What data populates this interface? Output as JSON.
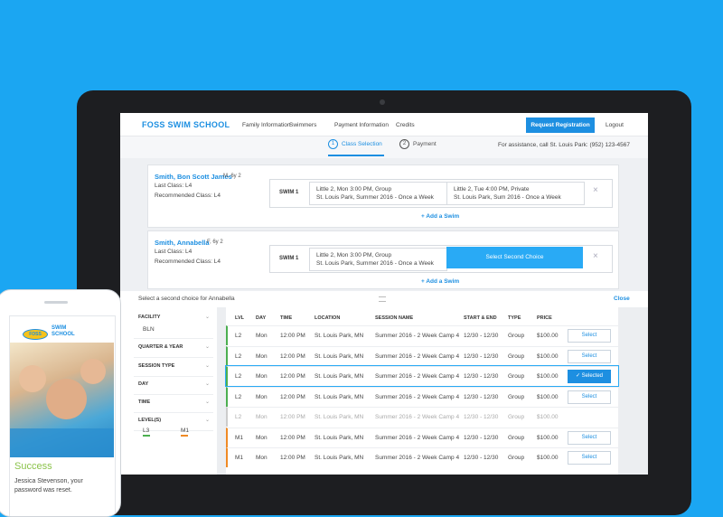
{
  "header": {
    "logo": "FOSS SWIM SCHOOL",
    "nav": [
      "Family Information",
      "Swimmers",
      "Payment Information",
      "Credits"
    ],
    "button": "Request Registration",
    "logout": "Logout"
  },
  "steps": [
    {
      "num": "1",
      "label": "Class Selection"
    },
    {
      "num": "2",
      "label": "Payment"
    }
  ],
  "assistance": "For assistance, call St. Louis Park: (952) 123-4567",
  "students": [
    {
      "name": "Smith, Bon Scott James",
      "meta": "M, 6y 2",
      "last": "Last Class: L4",
      "recommended": "Recommended Class: L4",
      "swim": "SWIM 1",
      "choices": [
        [
          "Little 2, Mon 3:00 PM, Group",
          "St. Louis Park, Summer 2016 - Once a Week"
        ],
        [
          "Little 2, Tue 4:00 PM, Private",
          "St. Louis Park, Sum 2016 - Once a Week"
        ]
      ],
      "add": "+ Add a Swim"
    },
    {
      "name": "Smith, Annabella",
      "meta": "F, 6y 2",
      "last": "Last Class: L4",
      "recommended": "Recommended Class: L4",
      "swim": "SWIM 1",
      "choices": [
        [
          "Little 2, Mon 3:00 PM, Group",
          "St. Louis Park, Summer 2016 - Once a Week"
        ]
      ],
      "second_choice": "Select Second Choice",
      "add": "+ Add a Swim"
    }
  ],
  "panel": {
    "prompt": "Select a second choice for Annabella",
    "close": "Close"
  },
  "filters": {
    "labels": [
      "FACILITY",
      "QUARTER & YEAR",
      "SESSION TYPE",
      "DAY",
      "TIME",
      "LEVEL(S)"
    ],
    "facility": "BLN",
    "levels": [
      "L3",
      "M1"
    ]
  },
  "table": {
    "headers": [
      "LVL",
      "DAY",
      "TIME",
      "LOCATION",
      "SESSION NAME",
      "START & END",
      "TYPE",
      "PRICE"
    ],
    "rows": [
      [
        "L2",
        "Mon",
        "12:00 PM",
        "St. Louis Park, MN",
        "Summer 2016 - 2 Week Camp 4",
        "12/30 - 12/30",
        "Group",
        "$100.00"
      ],
      [
        "L2",
        "Mon",
        "12:00 PM",
        "St. Louis Park, MN",
        "Summer 2016 - 2 Week Camp 4",
        "12/30 - 12/30",
        "Group",
        "$100.00"
      ],
      [
        "L2",
        "Mon",
        "12:00 PM",
        "St. Louis Park, MN",
        "Summer 2016 - 2 Week Camp 4",
        "12/30 - 12/30",
        "Group",
        "$100.00"
      ],
      [
        "L2",
        "Mon",
        "12:00 PM",
        "St. Louis Park, MN",
        "Summer 2016 - 2 Week Camp 4",
        "12/30 - 12/30",
        "Group",
        "$100.00"
      ],
      [
        "L2",
        "Mon",
        "12:00 PM",
        "St. Louis Park, MN",
        "Summer 2016 - 2 Week Camp 4",
        "12/30 - 12/30",
        "Group",
        "$100.00"
      ],
      [
        "M1",
        "Mon",
        "12:00 PM",
        "St. Louis Park, MN",
        "Summer 2016 - 2 Week Camp 4",
        "12/30 - 12/30",
        "Group",
        "$100.00"
      ],
      [
        "M1",
        "Mon",
        "12:00 PM",
        "St. Louis Park, MN",
        "Summer 2016 - 2 Week Camp 4",
        "12/30 - 12/30",
        "Group",
        "$100.00"
      ]
    ],
    "actions": [
      "Select",
      "Select",
      "✓ Selected",
      "Select",
      null,
      "Select",
      "Select"
    ]
  },
  "phone": {
    "badge": "FOSS",
    "logo": "SWIM SCHOOL",
    "success": "Success",
    "message": "Jessica Stevenson, your password was reset."
  }
}
